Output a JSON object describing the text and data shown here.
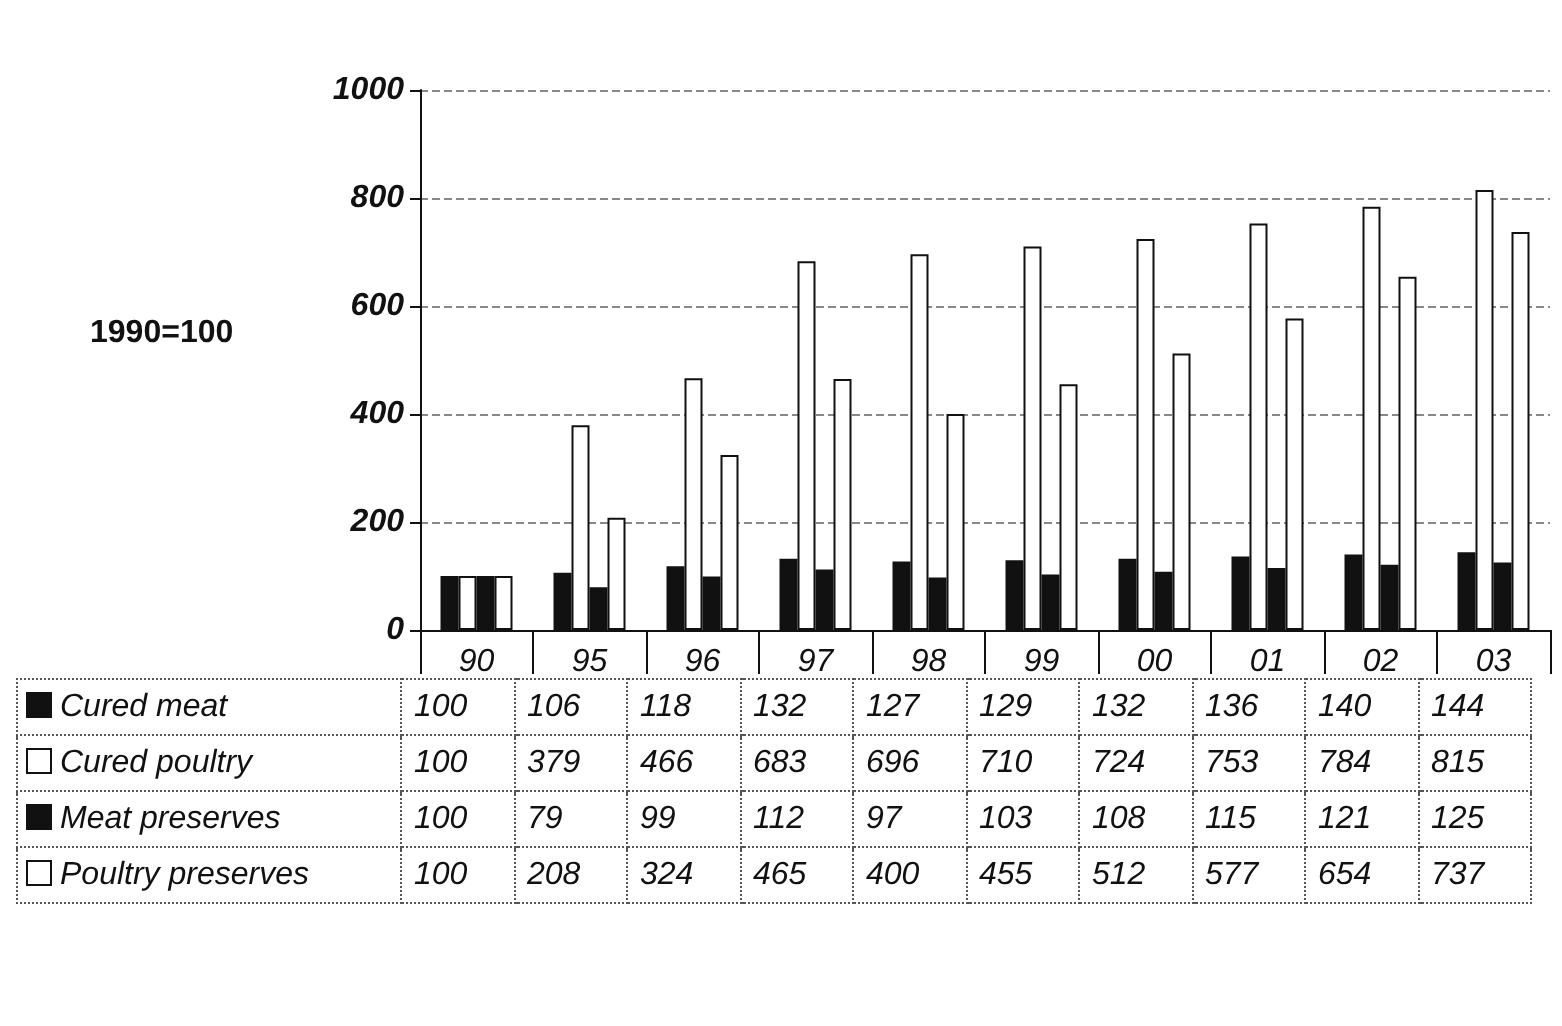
{
  "chart_data": {
    "type": "bar",
    "ylabel": "1990=100",
    "categories": [
      "90",
      "95",
      "96",
      "97",
      "98",
      "99",
      "00",
      "01",
      "02",
      "03"
    ],
    "series": [
      {
        "name": "Cured meat",
        "color": "#111111",
        "values": [
          100,
          106,
          118,
          132,
          127,
          129,
          132,
          136,
          140,
          144
        ]
      },
      {
        "name": "Cured poultry",
        "color": "#ffffff",
        "values": [
          100,
          379,
          466,
          683,
          696,
          710,
          724,
          753,
          784,
          815
        ]
      },
      {
        "name": "Meat preserves",
        "color": "#111111",
        "values": [
          100,
          79,
          99,
          112,
          97,
          103,
          108,
          115,
          121,
          125
        ]
      },
      {
        "name": "Poultry preserves",
        "color": "#ffffff",
        "values": [
          100,
          208,
          324,
          465,
          400,
          455,
          512,
          577,
          654,
          737
        ]
      }
    ],
    "ylim": [
      0,
      1000
    ],
    "yticks": [
      0,
      200,
      400,
      600,
      800,
      1000
    ],
    "grid": "y",
    "legend": "bottom left",
    "data_labels": true
  }
}
